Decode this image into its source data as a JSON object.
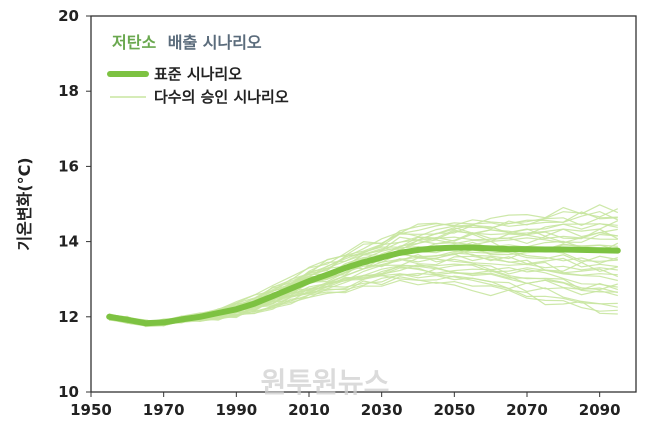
{
  "chart_data": {
    "type": "line",
    "title_part1": "저탄소",
    "title_part2": "배출 시나리오",
    "ylabel": "기온변화(°C)",
    "xlabel": "",
    "xlim": [
      1950,
      2100
    ],
    "ylim": [
      10,
      20
    ],
    "x_ticks": [
      "1950",
      "1970",
      "1990",
      "2010",
      "2030",
      "2050",
      "2070",
      "2090"
    ],
    "y_ticks": [
      "10",
      "12",
      "14",
      "16",
      "18",
      "20"
    ],
    "grid": false,
    "legend_position": "top-left",
    "colors": {
      "main": "#7dc242",
      "ensemble": "#c8e6a0",
      "title_green": "#6aa84f",
      "title_dark": "#5a6b7b"
    },
    "series": [
      {
        "name": "표준 시나리오",
        "x": [
          1955,
          1960,
          1965,
          1970,
          1975,
          1980,
          1985,
          1990,
          1995,
          2000,
          2005,
          2010,
          2015,
          2020,
          2025,
          2030,
          2035,
          2040,
          2045,
          2050,
          2055,
          2060,
          2065,
          2070,
          2075,
          2080,
          2085,
          2090,
          2095
        ],
        "y": [
          12.0,
          11.92,
          11.83,
          11.85,
          11.93,
          12.0,
          12.1,
          12.2,
          12.35,
          12.55,
          12.75,
          12.95,
          13.12,
          13.3,
          13.45,
          13.58,
          13.7,
          13.78,
          13.82,
          13.84,
          13.84,
          13.82,
          13.8,
          13.8,
          13.79,
          13.79,
          13.78,
          13.77,
          13.76
        ]
      },
      {
        "name": "다수의 승인 시나리오",
        "ensemble_end_values": [
          12.1,
          12.2,
          12.3,
          12.4,
          12.5,
          12.6,
          12.7,
          12.8,
          12.9,
          13.0,
          13.1,
          13.2,
          13.3,
          13.4,
          13.5,
          13.6,
          13.7,
          13.8,
          13.9,
          14.0,
          14.1,
          14.2,
          14.3,
          14.4,
          14.5,
          14.6,
          14.7,
          14.8,
          14.9,
          13.25,
          13.55,
          13.85,
          14.15,
          14.45,
          14.75,
          12.75
        ]
      }
    ]
  },
  "watermark": "원투원뉴스"
}
